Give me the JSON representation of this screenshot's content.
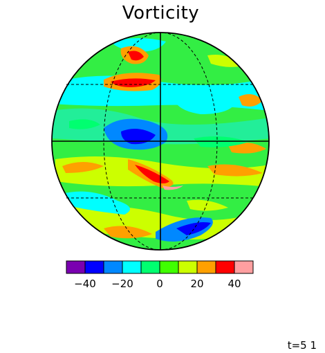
{
  "figure": {
    "title": "Vorticity",
    "timestamp": "t=5 1"
  },
  "colorbar": {
    "colors": [
      "#7a00b0",
      "#0000ff",
      "#0088ff",
      "#00ffff",
      "#00ff70",
      "#40ff00",
      "#ccff00",
      "#ffa000",
      "#ff0000",
      "#ff9fa0"
    ],
    "tick_labels": [
      "−40",
      "−20",
      "0",
      "20",
      "40"
    ]
  },
  "map_colors": {
    "background": "#40e840",
    "ocean_green": "#22ee55",
    "cyan": "#00ffff",
    "light_blue": "#0088ff",
    "blue": "#0000ff",
    "yellow": "#ccff00",
    "orange": "#ffa000",
    "red": "#ff0000",
    "pink": "#ff9fa0"
  }
}
